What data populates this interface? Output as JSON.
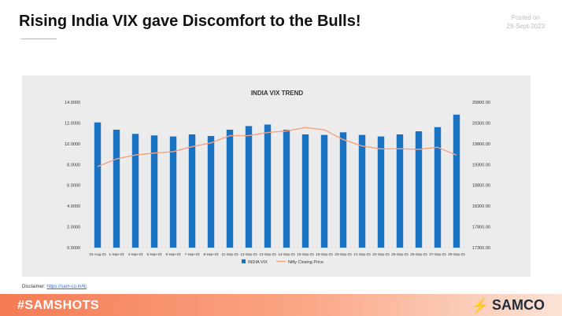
{
  "header": {
    "title": "Rising India VIX gave Discomfort to the Bulls!",
    "posted_label": "Posted on",
    "posted_date": "29-Sept-2023"
  },
  "disclaimer": {
    "label": "Disclaimer:",
    "link_text": "https://sam-co.in/6j"
  },
  "footer": {
    "hashtag": "#SAMSHOTS",
    "brand": "SAMCO",
    "brand_icon": "samco-logo-icon"
  },
  "colors": {
    "bar": "#1a72c2",
    "line": "#f4a381",
    "footer_accent": "#f47b54",
    "panel": "#ececec"
  },
  "chart_data": {
    "type": "bar+line",
    "title": "INDIA VIX TREND",
    "categories": [
      "31-Aug-23",
      "1-Sep-23",
      "4-Sep-23",
      "5-Sep-23",
      "6-Sep-23",
      "7-Sep-23",
      "8-Sep-23",
      "11-Sep-23",
      "12-Sep-23",
      "13-Sep-23",
      "14-Sep-23",
      "15-Sep-23",
      "18-Sep-23",
      "20-Sep-23",
      "21-Sep-23",
      "22-Sep-23",
      "25-Sep-23",
      "26-Sep-23",
      "27-Sep-23",
      "28-Sep-23"
    ],
    "series": [
      {
        "name": "INDIA VIX",
        "kind": "bar",
        "axis": "left",
        "values": [
          12.05,
          11.35,
          10.95,
          10.8,
          10.7,
          10.9,
          10.75,
          11.35,
          11.7,
          11.85,
          11.35,
          10.9,
          10.85,
          11.1,
          10.85,
          10.7,
          10.9,
          11.2,
          11.6,
          12.8
        ]
      },
      {
        "name": "Nifty Closing Price",
        "kind": "line",
        "axis": "right",
        "values": [
          19250,
          19435,
          19530,
          19575,
          19610,
          19730,
          19820,
          19995,
          19995,
          20070,
          20105,
          20190,
          20135,
          19900,
          19745,
          19675,
          19680,
          19665,
          19715,
          19525
        ]
      }
    ],
    "yleft": {
      "min": 0,
      "max": 14,
      "ticks": [
        "0.0000",
        "2.0000",
        "4.0000",
        "6.0000",
        "8.0000",
        "10.0000",
        "12.0000",
        "14.0000"
      ]
    },
    "yright": {
      "min": 17300,
      "max": 20800,
      "ticks": [
        "17300.00",
        "17800.00",
        "18300.00",
        "18800.00",
        "19300.00",
        "19800.00",
        "20300.00",
        "20800.00"
      ]
    },
    "legend": "bottom",
    "grid": false
  }
}
